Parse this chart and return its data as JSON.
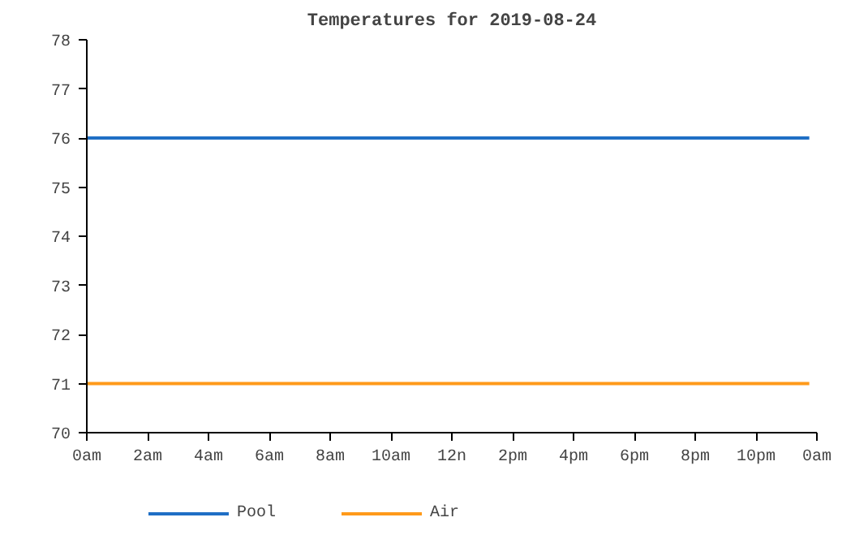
{
  "chart_data": {
    "type": "line",
    "title": "Temperatures for 2019-08-24",
    "x": [
      "2019-08-24T00:00",
      "2019-08-24T23:45"
    ],
    "series": [
      {
        "name": "Pool",
        "color": "#1f6fc5",
        "values": [
          76,
          76
        ]
      },
      {
        "name": "Air",
        "color": "#ff9a1a",
        "values": [
          71,
          71
        ]
      }
    ],
    "xlim": [
      "2019-08-24T00:00",
      "2019-08-25T00:00"
    ],
    "xticks": [
      {
        "value": "2019-08-24T00:00",
        "label": "0am"
      },
      {
        "value": "2019-08-24T02:00",
        "label": "2am"
      },
      {
        "value": "2019-08-24T04:00",
        "label": "4am"
      },
      {
        "value": "2019-08-24T06:00",
        "label": "6am"
      },
      {
        "value": "2019-08-24T08:00",
        "label": "8am"
      },
      {
        "value": "2019-08-24T10:00",
        "label": "10am"
      },
      {
        "value": "2019-08-24T12:00",
        "label": "12n"
      },
      {
        "value": "2019-08-24T14:00",
        "label": "2pm"
      },
      {
        "value": "2019-08-24T16:00",
        "label": "4pm"
      },
      {
        "value": "2019-08-24T18:00",
        "label": "6pm"
      },
      {
        "value": "2019-08-24T20:00",
        "label": "8pm"
      },
      {
        "value": "2019-08-24T22:00",
        "label": "10pm"
      },
      {
        "value": "2019-08-25T00:00",
        "label": "0am"
      }
    ],
    "ylim": [
      70,
      78
    ],
    "yticks": [
      70,
      71,
      72,
      73,
      74,
      75,
      76,
      77,
      78
    ],
    "grid": false,
    "legend": "bottom",
    "line_style": "solid"
  }
}
